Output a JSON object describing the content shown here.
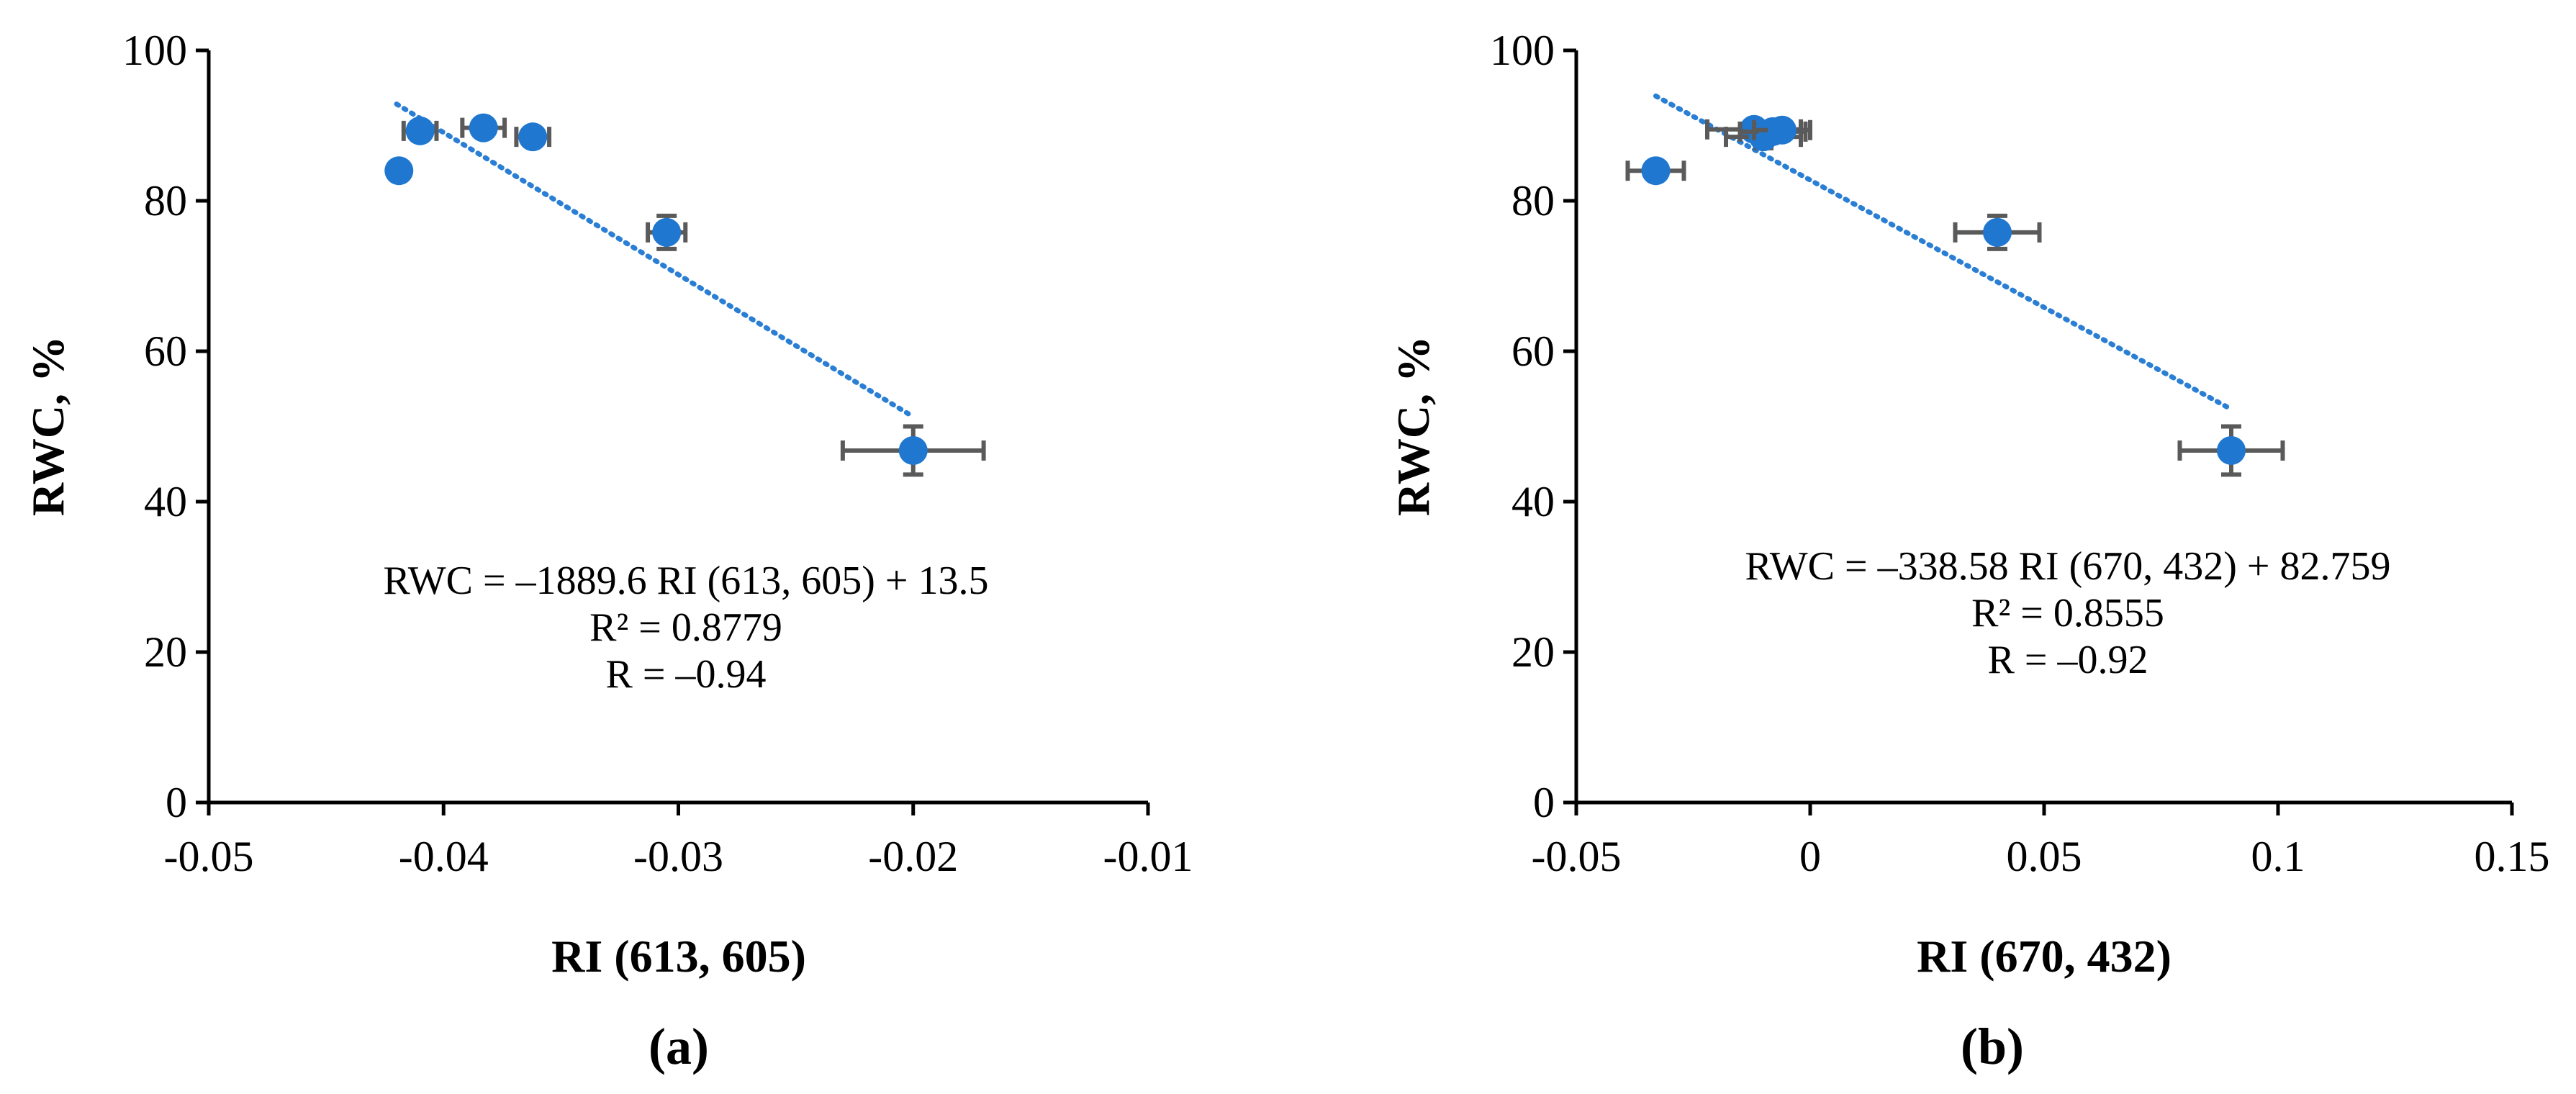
{
  "colors": {
    "point": "#1f77d0",
    "trend": "#2a7fd4",
    "error_bar": "#5a5a5a"
  },
  "chart_data": [
    {
      "type": "scatter",
      "panel_label": "(a)",
      "xlabel": "RI (613, 605)",
      "ylabel": "RWC, %",
      "xlim": [
        -0.05,
        -0.01
      ],
      "ylim": [
        0,
        100
      ],
      "x_ticks": [
        -0.05,
        -0.04,
        -0.03,
        -0.02,
        -0.01
      ],
      "x_tick_labels": [
        "-0.05",
        "-0.04",
        "-0.03",
        "-0.02",
        "-0.01"
      ],
      "y_ticks": [
        0,
        20,
        40,
        60,
        80,
        100
      ],
      "y_tick_labels": [
        "0",
        "20",
        "40",
        "60",
        "80",
        "100"
      ],
      "points": [
        {
          "x": -0.0419,
          "y": 84.0,
          "xerr": 0.0002,
          "yerr": 0.8
        },
        {
          "x": -0.041,
          "y": 89.3,
          "xerr": 0.0007,
          "yerr": 0.8
        },
        {
          "x": -0.0383,
          "y": 89.7,
          "xerr": 0.0009,
          "yerr": 0.8
        },
        {
          "x": -0.0362,
          "y": 88.5,
          "xerr": 0.0007,
          "yerr": 0.8
        },
        {
          "x": -0.0305,
          "y": 75.8,
          "xerr": 0.0008,
          "yerr": 2.2
        },
        {
          "x": -0.02,
          "y": 46.8,
          "xerr": 0.003,
          "yerr": 3.2
        }
      ],
      "trendline": {
        "x_start": -0.042,
        "x_end": -0.02,
        "slope": -1889.6,
        "intercept": 13.5
      },
      "annotation": {
        "equation": "RWC = –1889.6 RI (613, 605) + 13.5",
        "r2": "R² = 0.8779",
        "r": "R = –0.94"
      }
    },
    {
      "type": "scatter",
      "panel_label": "(b)",
      "xlabel": "RI (670, 432)",
      "ylabel": "RWC, %",
      "xlim": [
        -0.05,
        0.15
      ],
      "ylim": [
        0,
        100
      ],
      "x_ticks": [
        -0.05,
        0,
        0.05,
        0.1,
        0.15
      ],
      "x_tick_labels": [
        "-0.05",
        "0",
        "0.05",
        "0.1",
        "0.15"
      ],
      "y_ticks": [
        0,
        20,
        40,
        60,
        80,
        100
      ],
      "y_tick_labels": [
        "0",
        "20",
        "40",
        "60",
        "80",
        "100"
      ],
      "points": [
        {
          "x": -0.033,
          "y": 84.0,
          "xerr": 0.006,
          "yerr": 0.8
        },
        {
          "x": -0.012,
          "y": 89.5,
          "xerr": 0.01,
          "yerr": 0.8
        },
        {
          "x": -0.01,
          "y": 88.5,
          "xerr": 0.008,
          "yerr": 1.5
        },
        {
          "x": -0.008,
          "y": 89.2,
          "xerr": 0.007,
          "yerr": 0.8
        },
        {
          "x": -0.006,
          "y": 89.4,
          "xerr": 0.006,
          "yerr": 0.8
        },
        {
          "x": 0.04,
          "y": 75.8,
          "xerr": 0.009,
          "yerr": 2.2
        },
        {
          "x": 0.09,
          "y": 46.8,
          "xerr": 0.011,
          "yerr": 3.2
        }
      ],
      "trendline": {
        "x_start": -0.033,
        "x_end": 0.09,
        "slope": -338.58,
        "intercept": 82.759
      },
      "annotation": {
        "equation": "RWC = –338.58 RI (670, 432) + 82.759",
        "r2": "R² = 0.8555",
        "r": "R = –0.92"
      }
    }
  ]
}
